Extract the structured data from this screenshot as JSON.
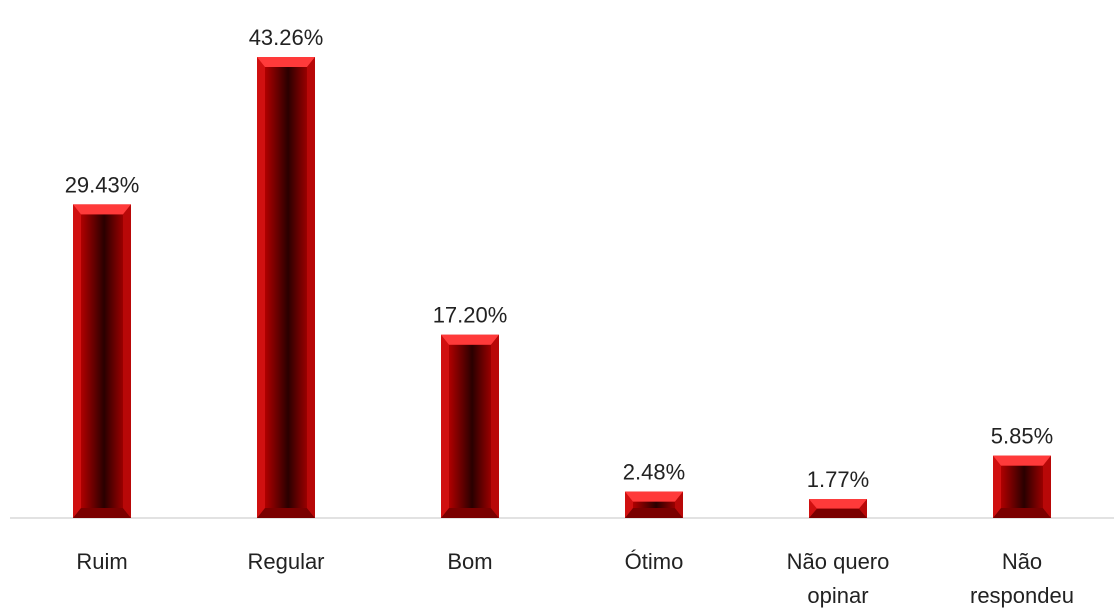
{
  "chart_data": {
    "type": "bar",
    "categories": [
      "Ruim",
      "Regular",
      "Bom",
      "Ótimo",
      "Não quero opinar",
      "Não respondeu"
    ],
    "values": [
      29.43,
      43.26,
      17.2,
      2.48,
      1.77,
      5.85
    ],
    "value_labels": [
      "29.43%",
      "43.26%",
      "17.20%",
      "2.48%",
      "1.77%",
      "5.85%"
    ],
    "color": "#d01010"
  }
}
